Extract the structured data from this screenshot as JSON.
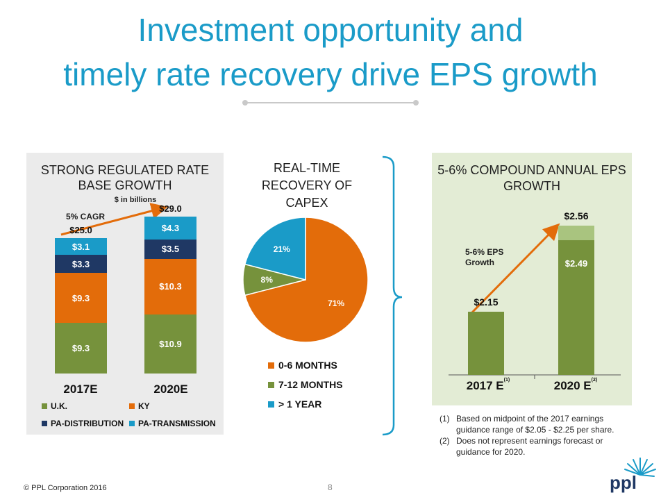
{
  "slide": {
    "title_line1": "Investment opportunity and",
    "title_line2": "timely rate recovery drive EPS growth",
    "copyright": "© PPL Corporation 2016",
    "page_number": "8",
    "logo_text": "ppl"
  },
  "colors": {
    "title": "#1a9bc8",
    "uk": "#76923c",
    "ky": "#e36c0a",
    "pa_distribution": "#1f3864",
    "pa_transmission": "#1a9bc8",
    "eps_light": "#a9c47f",
    "arrow": "#e36c0a"
  },
  "chart_data": [
    {
      "type": "bar",
      "title": "STRONG REGULATED RATE BASE GROWTH",
      "subtitle": "$ in billions",
      "annotation": "5% CAGR",
      "categories": [
        "2017E",
        "2020E"
      ],
      "totals": [
        "$25.0",
        "$29.0"
      ],
      "series": [
        {
          "name": "U.K.",
          "values": [
            9.3,
            10.9
          ],
          "labels": [
            "$9.3",
            "$10.9"
          ]
        },
        {
          "name": "KY",
          "values": [
            9.3,
            10.3
          ],
          "labels": [
            "$9.3",
            "$10.3"
          ]
        },
        {
          "name": "PA-DISTRIBUTION",
          "values": [
            3.3,
            3.5
          ],
          "labels": [
            "$3.3",
            "$3.5"
          ]
        },
        {
          "name": "PA-TRANSMISSION",
          "values": [
            3.1,
            4.3
          ],
          "labels": [
            "$3.1",
            "$4.3"
          ]
        }
      ],
      "ylim": [
        0,
        29.0
      ],
      "legend": "bottom"
    },
    {
      "type": "pie",
      "title": "REAL-TIME RECOVERY OF CAPEX",
      "slices": [
        {
          "name": "0-6 MONTHS",
          "value": 71,
          "label": "71%"
        },
        {
          "name": "7-12 MONTHS",
          "value": 8,
          "label": "8%"
        },
        {
          "name": "> 1 YEAR",
          "value": 21,
          "label": "21%"
        }
      ],
      "legend": "bottom"
    },
    {
      "type": "bar",
      "title": "5-6% COMPOUND ANNUAL EPS GROWTH",
      "annotation": "5-6% EPS Growth",
      "categories": [
        "2017 E",
        "2020 E"
      ],
      "category_notes": [
        "(1)",
        "(2)"
      ],
      "values": [
        2.15,
        2.56
      ],
      "labels": [
        "$2.15",
        "$2.56"
      ],
      "range_low": [
        2.15,
        2.49
      ],
      "range_low_label": "$2.49",
      "ylim": [
        1.85,
        2.59
      ]
    }
  ],
  "footnotes": [
    {
      "marker": "(1)",
      "text": "Based on midpoint of the 2017 earnings guidance range of $2.05 - $2.25 per share."
    },
    {
      "marker": "(2)",
      "text": "Does not represent earnings forecast or guidance for 2020."
    }
  ]
}
